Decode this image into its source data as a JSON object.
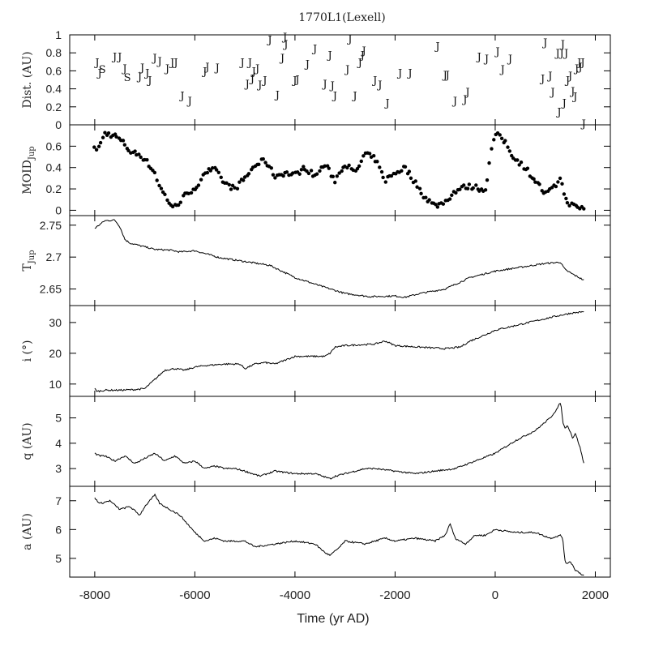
{
  "title": "1770L1(Lexell)",
  "x_axis": {
    "label": "Time (yr AD)",
    "range": [
      -8500,
      2300
    ],
    "ticks": [
      -8000,
      -6000,
      -4000,
      -2000,
      0,
      2000
    ],
    "tick_labels": [
      "-8000",
      "-6000",
      "-4000",
      "-2000",
      "0",
      "2000"
    ]
  },
  "chart_data": [
    {
      "type": "scatter",
      "panel": "Dist.",
      "ylabel": "Dist. (AU)",
      "ylim": [
        0,
        1
      ],
      "yticks": [
        0,
        0.2,
        0.4,
        0.6,
        0.8,
        1
      ],
      "ytick_labels": [
        "0",
        "0.2",
        "0.4",
        "0.6",
        "0.8",
        "1"
      ],
      "marker_note": "points plotted as letters (J = Jupiter, S = Saturn)",
      "points": [
        {
          "x": -7950,
          "y": 0.7,
          "m": "J"
        },
        {
          "x": -7900,
          "y": 0.58,
          "m": "J"
        },
        {
          "x": -7850,
          "y": 0.62,
          "m": "S"
        },
        {
          "x": -7600,
          "y": 0.76,
          "m": "J"
        },
        {
          "x": -7500,
          "y": 0.76,
          "m": "J"
        },
        {
          "x": -7400,
          "y": 0.63,
          "m": "J"
        },
        {
          "x": -7350,
          "y": 0.53,
          "m": "S"
        },
        {
          "x": -7100,
          "y": 0.54,
          "m": "J"
        },
        {
          "x": -7050,
          "y": 0.64,
          "m": "J"
        },
        {
          "x": -6950,
          "y": 0.58,
          "m": "J"
        },
        {
          "x": -6900,
          "y": 0.5,
          "m": "J"
        },
        {
          "x": -6800,
          "y": 0.75,
          "m": "J"
        },
        {
          "x": -6700,
          "y": 0.71,
          "m": "J"
        },
        {
          "x": -6550,
          "y": 0.63,
          "m": "J"
        },
        {
          "x": -6450,
          "y": 0.7,
          "m": "J"
        },
        {
          "x": -6380,
          "y": 0.7,
          "m": "J"
        },
        {
          "x": -6250,
          "y": 0.33,
          "m": "J"
        },
        {
          "x": -6100,
          "y": 0.27,
          "m": "J"
        },
        {
          "x": -5800,
          "y": 0.6,
          "m": "J"
        },
        {
          "x": -5750,
          "y": 0.65,
          "m": "J"
        },
        {
          "x": -5550,
          "y": 0.64,
          "m": "J"
        },
        {
          "x": -5050,
          "y": 0.7,
          "m": "J"
        },
        {
          "x": -4950,
          "y": 0.46,
          "m": "J"
        },
        {
          "x": -4900,
          "y": 0.7,
          "m": "J"
        },
        {
          "x": -4850,
          "y": 0.52,
          "m": "J"
        },
        {
          "x": -4820,
          "y": 0.6,
          "m": "J"
        },
        {
          "x": -4750,
          "y": 0.63,
          "m": "J"
        },
        {
          "x": -4700,
          "y": 0.45,
          "m": "J"
        },
        {
          "x": -4600,
          "y": 0.5,
          "m": "J"
        },
        {
          "x": -4500,
          "y": 0.95,
          "m": "J"
        },
        {
          "x": -4350,
          "y": 0.34,
          "m": "J"
        },
        {
          "x": -4250,
          "y": 0.75,
          "m": "J"
        },
        {
          "x": -4200,
          "y": 0.98,
          "m": "J"
        },
        {
          "x": -4180,
          "y": 0.9,
          "m": "J"
        },
        {
          "x": -4000,
          "y": 0.5,
          "m": "J"
        },
        {
          "x": -3950,
          "y": 0.51,
          "m": "J"
        },
        {
          "x": -3750,
          "y": 0.68,
          "m": "J"
        },
        {
          "x": -3600,
          "y": 0.85,
          "m": "J"
        },
        {
          "x": -3400,
          "y": 0.46,
          "m": "J"
        },
        {
          "x": -3300,
          "y": 0.78,
          "m": "J"
        },
        {
          "x": -3250,
          "y": 0.44,
          "m": "J"
        },
        {
          "x": -3200,
          "y": 0.33,
          "m": "J"
        },
        {
          "x": -2950,
          "y": 0.62,
          "m": "J"
        },
        {
          "x": -2900,
          "y": 0.96,
          "m": "J"
        },
        {
          "x": -2800,
          "y": 0.33,
          "m": "J"
        },
        {
          "x": -2700,
          "y": 0.7,
          "m": "J"
        },
        {
          "x": -2650,
          "y": 0.78,
          "m": "J"
        },
        {
          "x": -2620,
          "y": 0.83,
          "m": "J"
        },
        {
          "x": -2400,
          "y": 0.5,
          "m": "J"
        },
        {
          "x": -2300,
          "y": 0.45,
          "m": "J"
        },
        {
          "x": -2150,
          "y": 0.25,
          "m": "J"
        },
        {
          "x": -1900,
          "y": 0.58,
          "m": "J"
        },
        {
          "x": -1700,
          "y": 0.58,
          "m": "J"
        },
        {
          "x": -1150,
          "y": 0.88,
          "m": "J"
        },
        {
          "x": -1000,
          "y": 0.56,
          "m": "J"
        },
        {
          "x": -950,
          "y": 0.56,
          "m": "J"
        },
        {
          "x": -800,
          "y": 0.27,
          "m": "J"
        },
        {
          "x": -600,
          "y": 0.29,
          "m": "J"
        },
        {
          "x": -550,
          "y": 0.37,
          "m": "J"
        },
        {
          "x": -320,
          "y": 0.76,
          "m": "J"
        },
        {
          "x": -170,
          "y": 0.74,
          "m": "J"
        },
        {
          "x": 50,
          "y": 0.82,
          "m": "J"
        },
        {
          "x": 150,
          "y": 0.62,
          "m": "J"
        },
        {
          "x": 300,
          "y": 0.74,
          "m": "J"
        },
        {
          "x": 950,
          "y": 0.52,
          "m": "J"
        },
        {
          "x": 1000,
          "y": 0.92,
          "m": "J"
        },
        {
          "x": 1100,
          "y": 0.55,
          "m": "J"
        },
        {
          "x": 1150,
          "y": 0.37,
          "m": "J"
        },
        {
          "x": 1250,
          "y": 0.8,
          "m": "J"
        },
        {
          "x": 1280,
          "y": 0.15,
          "m": "J"
        },
        {
          "x": 1330,
          "y": 0.8,
          "m": "J"
        },
        {
          "x": 1350,
          "y": 0.9,
          "m": "J"
        },
        {
          "x": 1380,
          "y": 0.25,
          "m": "J"
        },
        {
          "x": 1420,
          "y": 0.8,
          "m": "J"
        },
        {
          "x": 1450,
          "y": 0.5,
          "m": "J"
        },
        {
          "x": 1500,
          "y": 0.55,
          "m": "J"
        },
        {
          "x": 1550,
          "y": 0.38,
          "m": "J"
        },
        {
          "x": 1600,
          "y": 0.32,
          "m": "J"
        },
        {
          "x": 1630,
          "y": 0.63,
          "m": "J"
        },
        {
          "x": 1680,
          "y": 0.7,
          "m": "J"
        },
        {
          "x": 1700,
          "y": 0.65,
          "m": "J"
        },
        {
          "x": 1750,
          "y": 0.7,
          "m": "J"
        },
        {
          "x": 1770,
          "y": 0.02,
          "m": "J"
        }
      ]
    },
    {
      "type": "scatter",
      "panel": "MOID",
      "ylabel": "MOID",
      "ylabel_sub": "Jup",
      "ylim": [
        -0.05,
        0.8
      ],
      "yticks": [
        0,
        0.2,
        0.4,
        0.6
      ],
      "ytick_labels": [
        "0",
        "0.2",
        "0.4",
        "0.6"
      ],
      "anchors": {
        "x": [
          -8000,
          -7900,
          -7800,
          -7600,
          -7400,
          -7300,
          -7100,
          -7000,
          -6800,
          -6700,
          -6550,
          -6450,
          -6350,
          -6200,
          -6100,
          -5900,
          -5800,
          -5600,
          -5400,
          -5200,
          -5000,
          -4800,
          -4600,
          -4400,
          -4200,
          -4000,
          -3800,
          -3600,
          -3400,
          -3200,
          -3000,
          -2800,
          -2600,
          -2400,
          -2200,
          -2000,
          -1800,
          -1600,
          -1400,
          -1200,
          -1000,
          -800,
          -600,
          -400,
          -200,
          -100,
          0,
          100,
          200,
          300,
          400,
          500,
          600,
          800,
          1000,
          1200,
          1300,
          1400,
          1500,
          1600,
          1700,
          1770
        ],
        "y": [
          0.57,
          0.6,
          0.72,
          0.7,
          0.62,
          0.55,
          0.52,
          0.48,
          0.35,
          0.22,
          0.1,
          0.04,
          0.03,
          0.18,
          0.12,
          0.28,
          0.36,
          0.38,
          0.25,
          0.2,
          0.3,
          0.42,
          0.47,
          0.32,
          0.35,
          0.33,
          0.4,
          0.32,
          0.43,
          0.28,
          0.44,
          0.34,
          0.53,
          0.48,
          0.28,
          0.35,
          0.4,
          0.26,
          0.12,
          0.04,
          0.08,
          0.18,
          0.22,
          0.22,
          0.18,
          0.5,
          0.72,
          0.68,
          0.64,
          0.55,
          0.48,
          0.44,
          0.4,
          0.28,
          0.15,
          0.22,
          0.32,
          0.1,
          0.06,
          0.03,
          0.02,
          0.02
        ]
      },
      "points_per_anchor_step": 4
    },
    {
      "type": "line",
      "panel": "TJup",
      "ylabel": "T",
      "ylabel_sub": "Jup",
      "ylim": [
        2.624,
        2.765
      ],
      "yticks": [
        2.65,
        2.7,
        2.75
      ],
      "ytick_labels": [
        "2.65",
        "2.7",
        "2.75"
      ],
      "anchors": {
        "x": [
          -8000,
          -7800,
          -7600,
          -7500,
          -7400,
          -7300,
          -7000,
          -6800,
          -6500,
          -6300,
          -6000,
          -5500,
          -5000,
          -4500,
          -4000,
          -3500,
          -3000,
          -2500,
          -2000,
          -1800,
          -1500,
          -1000,
          -500,
          0,
          500,
          1000,
          1300,
          1400,
          1600,
          1770
        ],
        "y": [
          2.745,
          2.757,
          2.758,
          2.748,
          2.728,
          2.722,
          2.716,
          2.712,
          2.711,
          2.708,
          2.71,
          2.699,
          2.693,
          2.687,
          2.668,
          2.655,
          2.643,
          2.638,
          2.639,
          2.637,
          2.643,
          2.65,
          2.668,
          2.678,
          2.684,
          2.69,
          2.692,
          2.68,
          2.671,
          2.664
        ]
      }
    },
    {
      "type": "line",
      "panel": "i",
      "ylabel": "i (°)",
      "ylim": [
        6,
        35.5
      ],
      "yticks": [
        10,
        20,
        30
      ],
      "ytick_labels": [
        "10",
        "20",
        "30"
      ],
      "anchors": {
        "x": [
          -8000,
          -7950,
          -7800,
          -7500,
          -7200,
          -7000,
          -6800,
          -6600,
          -6400,
          -6200,
          -6000,
          -5800,
          -5400,
          -5100,
          -5000,
          -4800,
          -4600,
          -4400,
          -4000,
          -3400,
          -3300,
          -3200,
          -3000,
          -2400,
          -2200,
          -2000,
          -1500,
          -1000,
          -700,
          -500,
          -200,
          0,
          400,
          800,
          1200,
          1500,
          1770
        ],
        "y": [
          8.5,
          7.6,
          8.0,
          8.0,
          8.2,
          8.5,
          11.5,
          14.5,
          15.0,
          14.5,
          15.5,
          16.0,
          16.5,
          16.5,
          15.0,
          16.5,
          17.0,
          16.5,
          19.0,
          19.0,
          20.0,
          22.0,
          22.5,
          23.0,
          24.0,
          22.5,
          22.0,
          21.5,
          22.0,
          24.0,
          26.0,
          27.5,
          29.0,
          30.5,
          32.0,
          33.0,
          33.5
        ]
      }
    },
    {
      "type": "line",
      "panel": "q",
      "ylabel": "q (AU)",
      "ylim": [
        2.3,
        5.85
      ],
      "yticks": [
        3,
        4,
        5
      ],
      "ytick_labels": [
        "3",
        "4",
        "5"
      ],
      "anchors": {
        "x": [
          -8000,
          -7900,
          -7800,
          -7600,
          -7400,
          -7200,
          -7000,
          -6800,
          -6600,
          -6400,
          -6200,
          -6000,
          -5800,
          -5600,
          -5400,
          -5200,
          -5000,
          -4700,
          -4400,
          -4000,
          -3600,
          -3300,
          -3200,
          -3000,
          -2600,
          -2400,
          -2000,
          -1600,
          -1200,
          -800,
          -400,
          0,
          400,
          800,
          1100,
          1250,
          1300,
          1330,
          1350,
          1400,
          1450,
          1550,
          1600,
          1700,
          1770
        ],
        "y": [
          3.6,
          3.5,
          3.5,
          3.3,
          3.5,
          3.2,
          3.4,
          3.6,
          3.3,
          3.5,
          3.2,
          3.3,
          3.0,
          3.1,
          3.0,
          3.0,
          2.9,
          2.7,
          2.9,
          2.8,
          2.8,
          2.6,
          2.7,
          2.8,
          3.0,
          3.0,
          2.9,
          2.8,
          2.9,
          3.0,
          3.3,
          3.6,
          4.1,
          4.5,
          5.0,
          5.4,
          5.6,
          5.3,
          4.8,
          4.6,
          4.7,
          4.2,
          4.4,
          3.8,
          3.2
        ]
      }
    },
    {
      "type": "line",
      "panel": "a",
      "ylabel": "a (AU)",
      "ylim": [
        4.35,
        7.5
      ],
      "yticks": [
        5,
        6,
        7
      ],
      "ytick_labels": [
        "5",
        "6",
        "7"
      ],
      "anchors": {
        "x": [
          -8000,
          -7900,
          -7700,
          -7500,
          -7300,
          -7100,
          -7000,
          -6800,
          -6700,
          -6500,
          -6300,
          -6200,
          -6000,
          -5800,
          -5600,
          -5400,
          -5000,
          -4800,
          -4400,
          -4000,
          -3600,
          -3400,
          -3300,
          -3100,
          -3000,
          -2600,
          -2200,
          -2000,
          -1600,
          -1200,
          -1000,
          -900,
          -800,
          -600,
          -400,
          -200,
          0,
          400,
          800,
          1100,
          1300,
          1350,
          1400,
          1500,
          1600,
          1770
        ],
        "y": [
          7.1,
          6.9,
          7.0,
          6.7,
          6.8,
          6.5,
          6.8,
          7.2,
          6.9,
          6.7,
          6.5,
          6.3,
          5.9,
          5.6,
          5.7,
          5.6,
          5.6,
          5.4,
          5.5,
          5.6,
          5.5,
          5.2,
          5.1,
          5.4,
          5.6,
          5.5,
          5.7,
          5.6,
          5.7,
          5.6,
          5.8,
          6.2,
          5.7,
          5.5,
          5.8,
          5.8,
          6.0,
          5.9,
          5.9,
          5.7,
          5.8,
          5.7,
          4.8,
          4.9,
          4.6,
          4.4
        ]
      }
    }
  ]
}
